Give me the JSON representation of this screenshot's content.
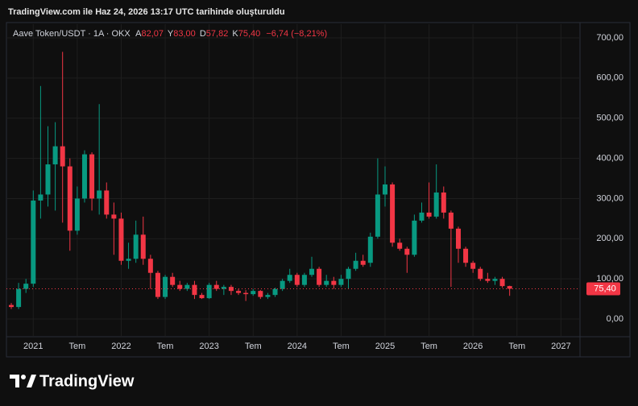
{
  "header": "TradingView.com ile Haz 24, 2026 13:17 UTC tarihinde oluşturuldu",
  "logo": "TradingView",
  "chart_data": {
    "type": "candlestick",
    "title": "Aave Token/USDT · 1A · OKX",
    "ohlc_legend": {
      "open_key": "A",
      "open": "82,07",
      "high_key": "Y",
      "high": "83,00",
      "low_key": "D",
      "low": "57,82",
      "close_key": "K",
      "close": "75,40",
      "change": "−6,74 (−8,21%)"
    },
    "last_price_label": "75,40",
    "up_color": "#089981",
    "down_color": "#f23645",
    "open": [
      35,
      30,
      75,
      88,
      295,
      310,
      385,
      430,
      380,
      220,
      300,
      410,
      300,
      320,
      260,
      250,
      145,
      150,
      210,
      150,
      115,
      55,
      105,
      85,
      75,
      85,
      60,
      52,
      85,
      75,
      80,
      70,
      65,
      62,
      70,
      55,
      60,
      75,
      95,
      110,
      85,
      110,
      125,
      85,
      95,
      85,
      100,
      125,
      145,
      140,
      205,
      310,
      335,
      190,
      175,
      160,
      245,
      265,
      255,
      315,
      265,
      225,
      175,
      140,
      125,
      100,
      95,
      100,
      82.07
    ],
    "high": [
      40,
      90,
      100,
      320,
      580,
      480,
      490,
      665,
      400,
      330,
      420,
      415,
      535,
      340,
      290,
      265,
      190,
      245,
      255,
      160,
      120,
      110,
      115,
      95,
      90,
      95,
      65,
      90,
      95,
      85,
      85,
      75,
      72,
      75,
      72,
      65,
      78,
      100,
      125,
      115,
      115,
      155,
      130,
      110,
      105,
      110,
      130,
      165,
      160,
      215,
      400,
      380,
      340,
      200,
      180,
      260,
      290,
      340,
      385,
      330,
      270,
      230,
      180,
      145,
      130,
      115,
      105,
      105,
      83
    ],
    "low": [
      25,
      25,
      65,
      80,
      250,
      280,
      270,
      240,
      170,
      210,
      290,
      270,
      260,
      250,
      160,
      135,
      125,
      140,
      135,
      75,
      50,
      50,
      80,
      70,
      70,
      50,
      50,
      50,
      70,
      60,
      60,
      60,
      45,
      58,
      50,
      50,
      55,
      70,
      90,
      80,
      80,
      105,
      80,
      80,
      75,
      80,
      75,
      120,
      130,
      130,
      200,
      280,
      180,
      170,
      115,
      155,
      240,
      250,
      250,
      250,
      80,
      140,
      130,
      115,
      95,
      90,
      85,
      78,
      57.82
    ],
    "close": [
      30,
      75,
      88,
      295,
      310,
      385,
      430,
      380,
      220,
      300,
      410,
      300,
      320,
      260,
      250,
      145,
      150,
      210,
      150,
      115,
      55,
      105,
      85,
      75,
      85,
      60,
      52,
      85,
      75,
      80,
      70,
      65,
      62,
      70,
      55,
      60,
      75,
      95,
      110,
      85,
      110,
      125,
      85,
      95,
      85,
      100,
      125,
      145,
      135,
      205,
      310,
      335,
      190,
      175,
      160,
      245,
      265,
      255,
      315,
      265,
      225,
      175,
      140,
      125,
      100,
      95,
      100,
      82.07,
      75.4
    ],
    "xlim": [
      -0.66,
      77.6
    ],
    "xticks": [
      {
        "value": 3,
        "label": "2021"
      },
      {
        "value": 9,
        "label": "Tem"
      },
      {
        "value": 15,
        "label": "2022"
      },
      {
        "value": 21,
        "label": "Tem"
      },
      {
        "value": 27,
        "label": "2023"
      },
      {
        "value": 33,
        "label": "Tem"
      },
      {
        "value": 39,
        "label": "2024"
      },
      {
        "value": 45,
        "label": "Tem"
      },
      {
        "value": 51,
        "label": "2025"
      },
      {
        "value": 57,
        "label": "Tem"
      },
      {
        "value": 63,
        "label": "2026"
      },
      {
        "value": 69,
        "label": "Tem"
      },
      {
        "value": 75,
        "label": "2027"
      }
    ],
    "ylim": [
      -44,
      734
    ],
    "yticks": [
      {
        "value": 0,
        "label": "0,00"
      },
      {
        "value": 100,
        "label": "100,00"
      },
      {
        "value": 200,
        "label": "200,00"
      },
      {
        "value": 300,
        "label": "300,00"
      },
      {
        "value": 400,
        "label": "400,00"
      },
      {
        "value": 500,
        "label": "500,00"
      },
      {
        "value": 600,
        "label": "600,00"
      },
      {
        "value": 700,
        "label": "700,00"
      }
    ],
    "grid": true
  }
}
